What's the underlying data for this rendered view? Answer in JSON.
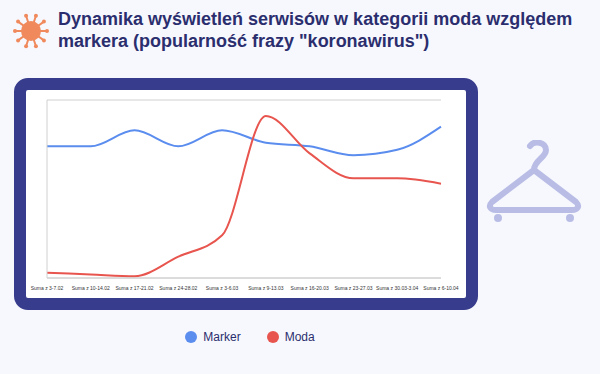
{
  "chart_data": {
    "type": "line",
    "title": "Dynamika wyświetleń serwisów w kategorii moda względem markera (popularność frazy \"koronawirus\")",
    "categories": [
      "Suma z 3-7.02",
      "Suma z 10-14.02",
      "Suma z 17-21.02",
      "Suma z 24-28.02",
      "Suma z 3-6.03",
      "Suma z 9-13.03",
      "Suma z 16-20.03",
      "Suma z 23-27.03",
      "Suma z 30.03-3.04",
      "Suma z 6-10.04"
    ],
    "series": [
      {
        "name": "Marker",
        "color": "#5b8def",
        "values": [
          74,
          74,
          83,
          74,
          83,
          76,
          74,
          69,
          72,
          85
        ]
      },
      {
        "name": "Moda",
        "color": "#e8554e",
        "values": [
          3,
          2,
          1,
          12,
          24,
          91,
          70,
          56,
          56,
          53
        ]
      }
    ],
    "ylim": [
      0,
      100
    ],
    "yticks": [
      0,
      50,
      83
    ],
    "grid": true,
    "tick_labels": "x",
    "legend": "bottom"
  }
}
